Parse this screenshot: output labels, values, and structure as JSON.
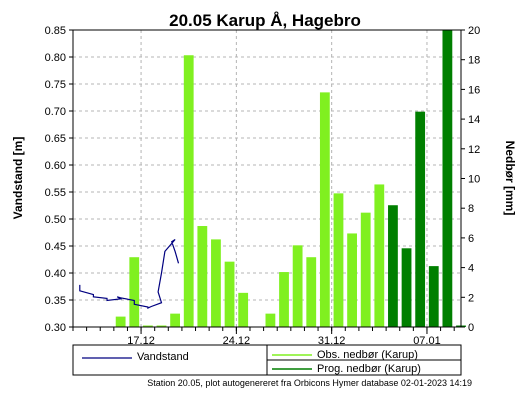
{
  "chart_data": {
    "type": "bar+line",
    "title": "20.05 Karup Å, Hagebro",
    "ylabel_left": "Vandstand [m]",
    "ylabel_right": "Nedbør [mm]",
    "ylim_left": [
      0.3,
      0.85
    ],
    "ylim_right": [
      0,
      20
    ],
    "yticks_left": [
      "0.30",
      "0.35",
      "0.40",
      "0.45",
      "0.50",
      "0.55",
      "0.60",
      "0.65",
      "0.70",
      "0.75",
      "0.80",
      "0.85"
    ],
    "yticks_right": [
      "0",
      "2",
      "4",
      "6",
      "8",
      "10",
      "12",
      "14",
      "16",
      "18",
      "20"
    ],
    "x_start": "2022-12-12",
    "x_end": "2023-01-09",
    "xticks": [
      {
        "date": "2022-12-17",
        "label": "17.12"
      },
      {
        "date": "2022-12-24",
        "label": "24.12"
      },
      {
        "date": "2022-12-31",
        "label": "31.12"
      },
      {
        "date": "2023-01-07",
        "label": "07.01"
      }
    ],
    "grid": true,
    "legend_position": "bottom",
    "series": [
      {
        "name": "Vandstand",
        "kind": "line",
        "axis": "left",
        "color": "#000080",
        "points": [
          [
            "2022-12-12",
            0.378
          ],
          [
            "2022-12-12T12:00",
            0.367
          ],
          [
            "2022-12-13",
            0.36
          ],
          [
            "2022-12-13T12:00",
            0.356
          ],
          [
            "2022-12-14",
            0.353
          ],
          [
            "2022-12-14T12:00",
            0.349
          ],
          [
            "2022-12-15",
            0.352
          ],
          [
            "2022-12-15T06:00",
            0.356
          ],
          [
            "2022-12-15T12:00",
            0.354
          ],
          [
            "2022-12-16",
            0.349
          ],
          [
            "2022-12-16T12:00",
            0.342
          ],
          [
            "2022-12-17",
            0.337
          ],
          [
            "2022-12-17T12:00",
            0.335
          ],
          [
            "2022-12-17T18:00",
            0.338
          ],
          [
            "2022-12-18",
            0.345
          ],
          [
            "2022-12-18T06:00",
            0.365
          ],
          [
            "2022-12-18T12:00",
            0.4
          ],
          [
            "2022-12-18T18:00",
            0.44
          ],
          [
            "2022-12-19",
            0.462
          ],
          [
            "2022-12-19T06:00",
            0.458
          ],
          [
            "2022-12-19T12:00",
            0.44
          ],
          [
            "2022-12-19T18:00",
            0.418
          ]
        ]
      },
      {
        "name": "Obs. nedbør (Karup)",
        "kind": "bar",
        "axis": "right",
        "color": "#80f020",
        "bars": [
          [
            "2022-12-15",
            0.7
          ],
          [
            "2022-12-16",
            4.7
          ],
          [
            "2022-12-17",
            0.1
          ],
          [
            "2022-12-18",
            0.1
          ],
          [
            "2022-12-19",
            0.9
          ],
          [
            "2022-12-20",
            18.3
          ],
          [
            "2022-12-21",
            6.8
          ],
          [
            "2022-12-22",
            5.9
          ],
          [
            "2022-12-23",
            4.4
          ],
          [
            "2022-12-24",
            2.3
          ],
          [
            "2022-12-26",
            0.9
          ],
          [
            "2022-12-27",
            3.7
          ],
          [
            "2022-12-28",
            5.5
          ],
          [
            "2022-12-29",
            4.7
          ],
          [
            "2022-12-30",
            15.8
          ],
          [
            "2022-12-31",
            9.0
          ],
          [
            "2023-01-01",
            6.3
          ],
          [
            "2023-01-02",
            7.7
          ],
          [
            "2023-01-03",
            9.6
          ]
        ]
      },
      {
        "name": "Prog. nedbør (Karup)",
        "kind": "bar",
        "axis": "right",
        "color": "#007f00",
        "bars": [
          [
            "2023-01-04",
            8.2
          ],
          [
            "2023-01-05",
            5.3
          ],
          [
            "2023-01-06",
            14.5
          ],
          [
            "2023-01-07",
            4.1
          ],
          [
            "2023-01-08",
            20.0
          ],
          [
            "2023-01-09",
            0.1
          ]
        ]
      }
    ],
    "footer": "Station 20.05, plot autogenereret fra Orbicons Hymer database 02-01-2023 14:19"
  }
}
